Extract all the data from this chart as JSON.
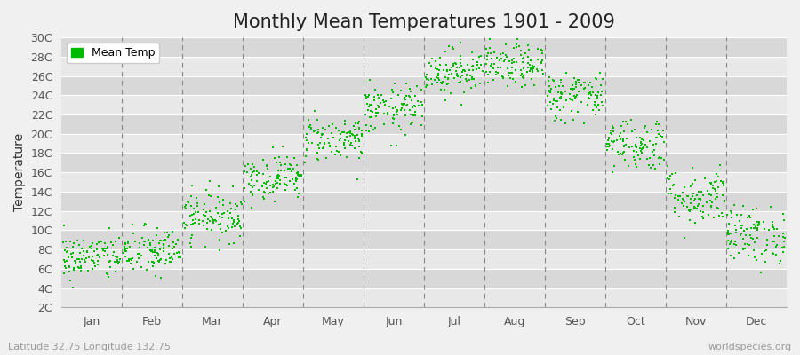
{
  "title": "Monthly Mean Temperatures 1901 - 2009",
  "ylabel": "Temperature",
  "xlabel_labels": [
    "Jan",
    "Feb",
    "Mar",
    "Apr",
    "May",
    "Jun",
    "Jul",
    "Aug",
    "Sep",
    "Oct",
    "Nov",
    "Dec"
  ],
  "ytick_labels": [
    "2C",
    "4C",
    "6C",
    "8C",
    "10C",
    "12C",
    "14C",
    "16C",
    "18C",
    "20C",
    "22C",
    "24C",
    "26C",
    "28C",
    "30C"
  ],
  "ytick_values": [
    2,
    4,
    6,
    8,
    10,
    12,
    14,
    16,
    18,
    20,
    22,
    24,
    26,
    28,
    30
  ],
  "ylim": [
    2,
    30
  ],
  "dot_color": "#00bb00",
  "dot_size": 3,
  "background_color": "#f0f0f0",
  "plot_bg_color": "#f0f0f0",
  "grid_color_light": "#e0e0e0",
  "grid_color_dark": "#d0d0d0",
  "dashed_line_color": "#888888",
  "legend_label": "Mean Temp",
  "footer_left": "Latitude 32.75 Longitude 132.75",
  "footer_right": "worldspecies.org",
  "title_fontsize": 15,
  "axis_fontsize": 10,
  "tick_fontsize": 9,
  "footer_fontsize": 8,
  "monthly_means": [
    7.2,
    7.8,
    11.5,
    15.5,
    19.5,
    22.5,
    26.5,
    27.0,
    24.0,
    19.0,
    13.5,
    9.5
  ],
  "monthly_stds": [
    1.2,
    1.3,
    1.3,
    1.2,
    1.2,
    1.3,
    1.2,
    1.1,
    1.3,
    1.4,
    1.5,
    1.5
  ],
  "n_years": 109,
  "seed": 42
}
